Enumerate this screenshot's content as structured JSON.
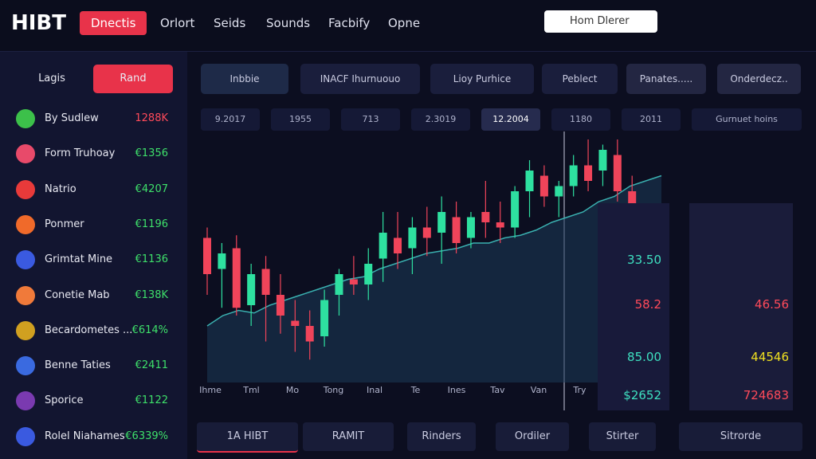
{
  "header": {
    "logo": "HIBT",
    "nav": [
      "Dnectis",
      "Orlort",
      "Seids",
      "Sounds",
      "Facbify",
      "Opne"
    ],
    "search": "Hom Dlerer"
  },
  "sidebar": {
    "tabs": [
      "Lagis",
      "Rand"
    ],
    "assets": [
      {
        "name": "By Sudlew",
        "value": "1288K"
      },
      {
        "name": "Form Truhoay",
        "value": "€1356"
      },
      {
        "name": "Natrio",
        "value": "€4207"
      },
      {
        "name": "Ponmer",
        "value": "€1196"
      },
      {
        "name": "Grimtat Mine",
        "value": "€1136"
      },
      {
        "name": "Conetie Mab",
        "value": "€138K"
      },
      {
        "name": "Becardometes ...",
        "value": "€614%"
      },
      {
        "name": "Benne Taties",
        "value": "€2411"
      },
      {
        "name": "Sporice",
        "value": "€1122"
      },
      {
        "name": "Rolel Niahames",
        "value": "€6339%"
      }
    ]
  },
  "toolbar": [
    "Inbbie",
    "INACF Ihurnuouo",
    "Lioy Purhice",
    "Peblect",
    "Panates.....",
    "Onderdecz.."
  ],
  "timeframes": [
    "9.2017",
    "1955",
    "713",
    "2.3019",
    "12.2004",
    "1180",
    "2011",
    "Gurnuet hoins"
  ],
  "chart": {
    "x_labels": [
      "Ihme",
      "Tml",
      "Mo",
      "Tong",
      "Inal",
      "Te",
      "Ines",
      "Tav",
      "Van",
      "Try"
    ],
    "candles": [
      [
        62,
        66,
        40,
        48
      ],
      [
        50,
        60,
        35,
        56
      ],
      [
        58,
        63,
        32,
        35
      ],
      [
        36,
        52,
        28,
        48
      ],
      [
        50,
        55,
        22,
        40
      ],
      [
        40,
        48,
        25,
        32
      ],
      [
        30,
        38,
        18,
        28
      ],
      [
        28,
        34,
        15,
        22
      ],
      [
        24,
        42,
        20,
        38
      ],
      [
        40,
        50,
        32,
        48
      ],
      [
        46,
        55,
        40,
        44
      ],
      [
        44,
        58,
        38,
        52
      ],
      [
        54,
        72,
        45,
        64
      ],
      [
        62,
        72,
        50,
        56
      ],
      [
        58,
        70,
        48,
        66
      ],
      [
        66,
        74,
        55,
        62
      ],
      [
        64,
        78,
        52,
        72
      ],
      [
        70,
        76,
        56,
        60
      ],
      [
        62,
        72,
        58,
        70
      ],
      [
        72,
        84,
        62,
        68
      ],
      [
        68,
        76,
        60,
        66
      ],
      [
        66,
        82,
        62,
        80
      ],
      [
        80,
        92,
        70,
        88
      ],
      [
        86,
        90,
        74,
        78
      ],
      [
        78,
        84,
        70,
        82
      ],
      [
        82,
        94,
        78,
        90
      ],
      [
        90,
        100,
        80,
        84
      ],
      [
        88,
        98,
        82,
        96
      ],
      [
        94,
        100,
        76,
        80
      ],
      [
        80,
        86,
        62,
        66
      ],
      [
        70,
        74,
        50,
        60
      ],
      [
        62,
        68,
        45,
        48
      ]
    ],
    "line": [
      28,
      32,
      34,
      33,
      36,
      38,
      40,
      42,
      44,
      46,
      47,
      50,
      52,
      54,
      56,
      57,
      58,
      60,
      60,
      62,
      63,
      65,
      68,
      70,
      72,
      76,
      78,
      82,
      84,
      86
    ]
  },
  "panel": [
    {
      "left": "33.50"
    },
    {
      "left": "58.2",
      "right": "46.56"
    },
    {
      "left": "85.00",
      "right": "44546"
    },
    {
      "left": "$2652",
      "right": "724683"
    }
  ],
  "bottom": [
    "1A HIBT",
    "RAMIT",
    "Rinders",
    "Ordiler",
    "Stirter",
    "Sitrorde"
  ]
}
